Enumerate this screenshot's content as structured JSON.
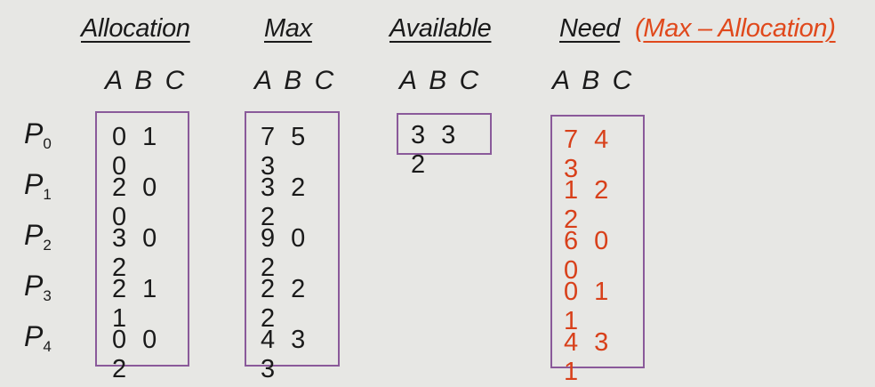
{
  "headers": {
    "allocation": "Allocation",
    "max": "Max",
    "available": "Available",
    "need": "Need",
    "need_note_open": "(",
    "need_note_text": "Max – Allocation)"
  },
  "resource_labels": {
    "allocation": "A B C",
    "max": "A B C",
    "available": "A B C",
    "need": "A B C"
  },
  "processes": [
    {
      "name": "P",
      "index": "0",
      "allocation": "0 1 0",
      "max": "7 5 3",
      "need": "7 4 3"
    },
    {
      "name": "P",
      "index": "1",
      "allocation": "2 0 0",
      "max": "3 2 2",
      "need": "1 2 2"
    },
    {
      "name": "P",
      "index": "2",
      "allocation": "3 0 2",
      "max": "9 0 2",
      "need": "6 0 0"
    },
    {
      "name": "P",
      "index": "3",
      "allocation": "2 1 1",
      "max": "2 2 2",
      "need": "0 1 1"
    },
    {
      "name": "P",
      "index": "4",
      "allocation": "0 0 2",
      "max": "4 3 3",
      "need": "4 3 1"
    }
  ],
  "available": "3 3 2",
  "colors": {
    "background": "#e7e7e4",
    "box_border": "#8a5a9a",
    "need_values": "#d8401a",
    "note": "#e0491c"
  }
}
